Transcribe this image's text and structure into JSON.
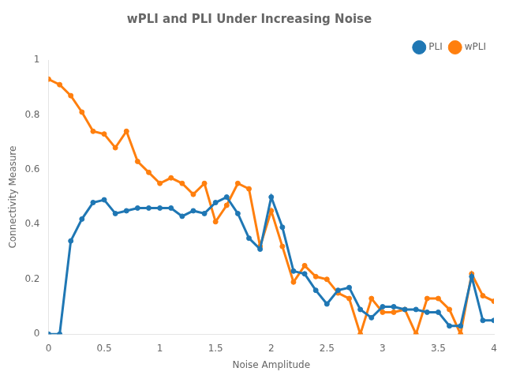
{
  "chart_data": {
    "type": "line",
    "title": "wPLI and PLI Under Increasing Noise",
    "x_label": "Noise Amplitude",
    "y_label": "Connectivity Measure",
    "x": [
      0.0,
      0.1,
      0.2,
      0.3,
      0.4,
      0.5,
      0.6,
      0.7,
      0.8,
      0.9,
      1.0,
      1.1,
      1.2,
      1.3,
      1.4,
      1.5,
      1.6,
      1.7,
      1.8,
      1.9,
      2.0,
      2.1,
      2.2,
      2.3,
      2.4,
      2.5,
      2.6,
      2.7,
      2.8,
      2.9,
      3.0,
      3.1,
      3.2,
      3.3,
      3.4,
      3.5,
      3.6,
      3.7,
      3.8,
      3.9,
      4.0
    ],
    "series": [
      {
        "name": "PLI",
        "color": "#1f77b4",
        "marker": "circle",
        "line_style": "solid",
        "values": [
          0.0,
          0.0,
          0.34,
          0.42,
          0.48,
          0.49,
          0.44,
          0.45,
          0.46,
          0.46,
          0.46,
          0.46,
          0.43,
          0.45,
          0.44,
          0.48,
          0.5,
          0.44,
          0.35,
          0.31,
          0.5,
          0.39,
          0.23,
          0.22,
          0.16,
          0.11,
          0.16,
          0.17,
          0.09,
          0.06,
          0.1,
          0.1,
          0.09,
          0.09,
          0.08,
          0.08,
          0.03,
          0.03,
          0.21,
          0.05,
          0.05
        ]
      },
      {
        "name": "wPLI",
        "color": "#ff7f0e",
        "marker": "circle",
        "line_style": "solid",
        "values": [
          0.93,
          0.91,
          0.87,
          0.81,
          0.74,
          0.73,
          0.68,
          0.74,
          0.63,
          0.59,
          0.55,
          0.57,
          0.55,
          0.51,
          0.55,
          0.41,
          0.47,
          0.55,
          0.53,
          0.32,
          0.45,
          0.32,
          0.19,
          0.25,
          0.21,
          0.2,
          0.15,
          0.13,
          0.0,
          0.13,
          0.08,
          0.08,
          0.09,
          0.0,
          0.13,
          0.13,
          0.09,
          0.0,
          0.22,
          0.14,
          0.12
        ]
      }
    ],
    "xlim": [
      0,
      4
    ],
    "xticks": [
      0,
      0.5,
      1,
      1.5,
      2,
      2.5,
      3,
      3.5,
      4
    ],
    "ylim": [
      0,
      1
    ],
    "yticks": [
      0,
      0.2,
      0.4,
      0.6,
      0.8,
      1
    ],
    "grid": false,
    "legend": "upper right"
  }
}
